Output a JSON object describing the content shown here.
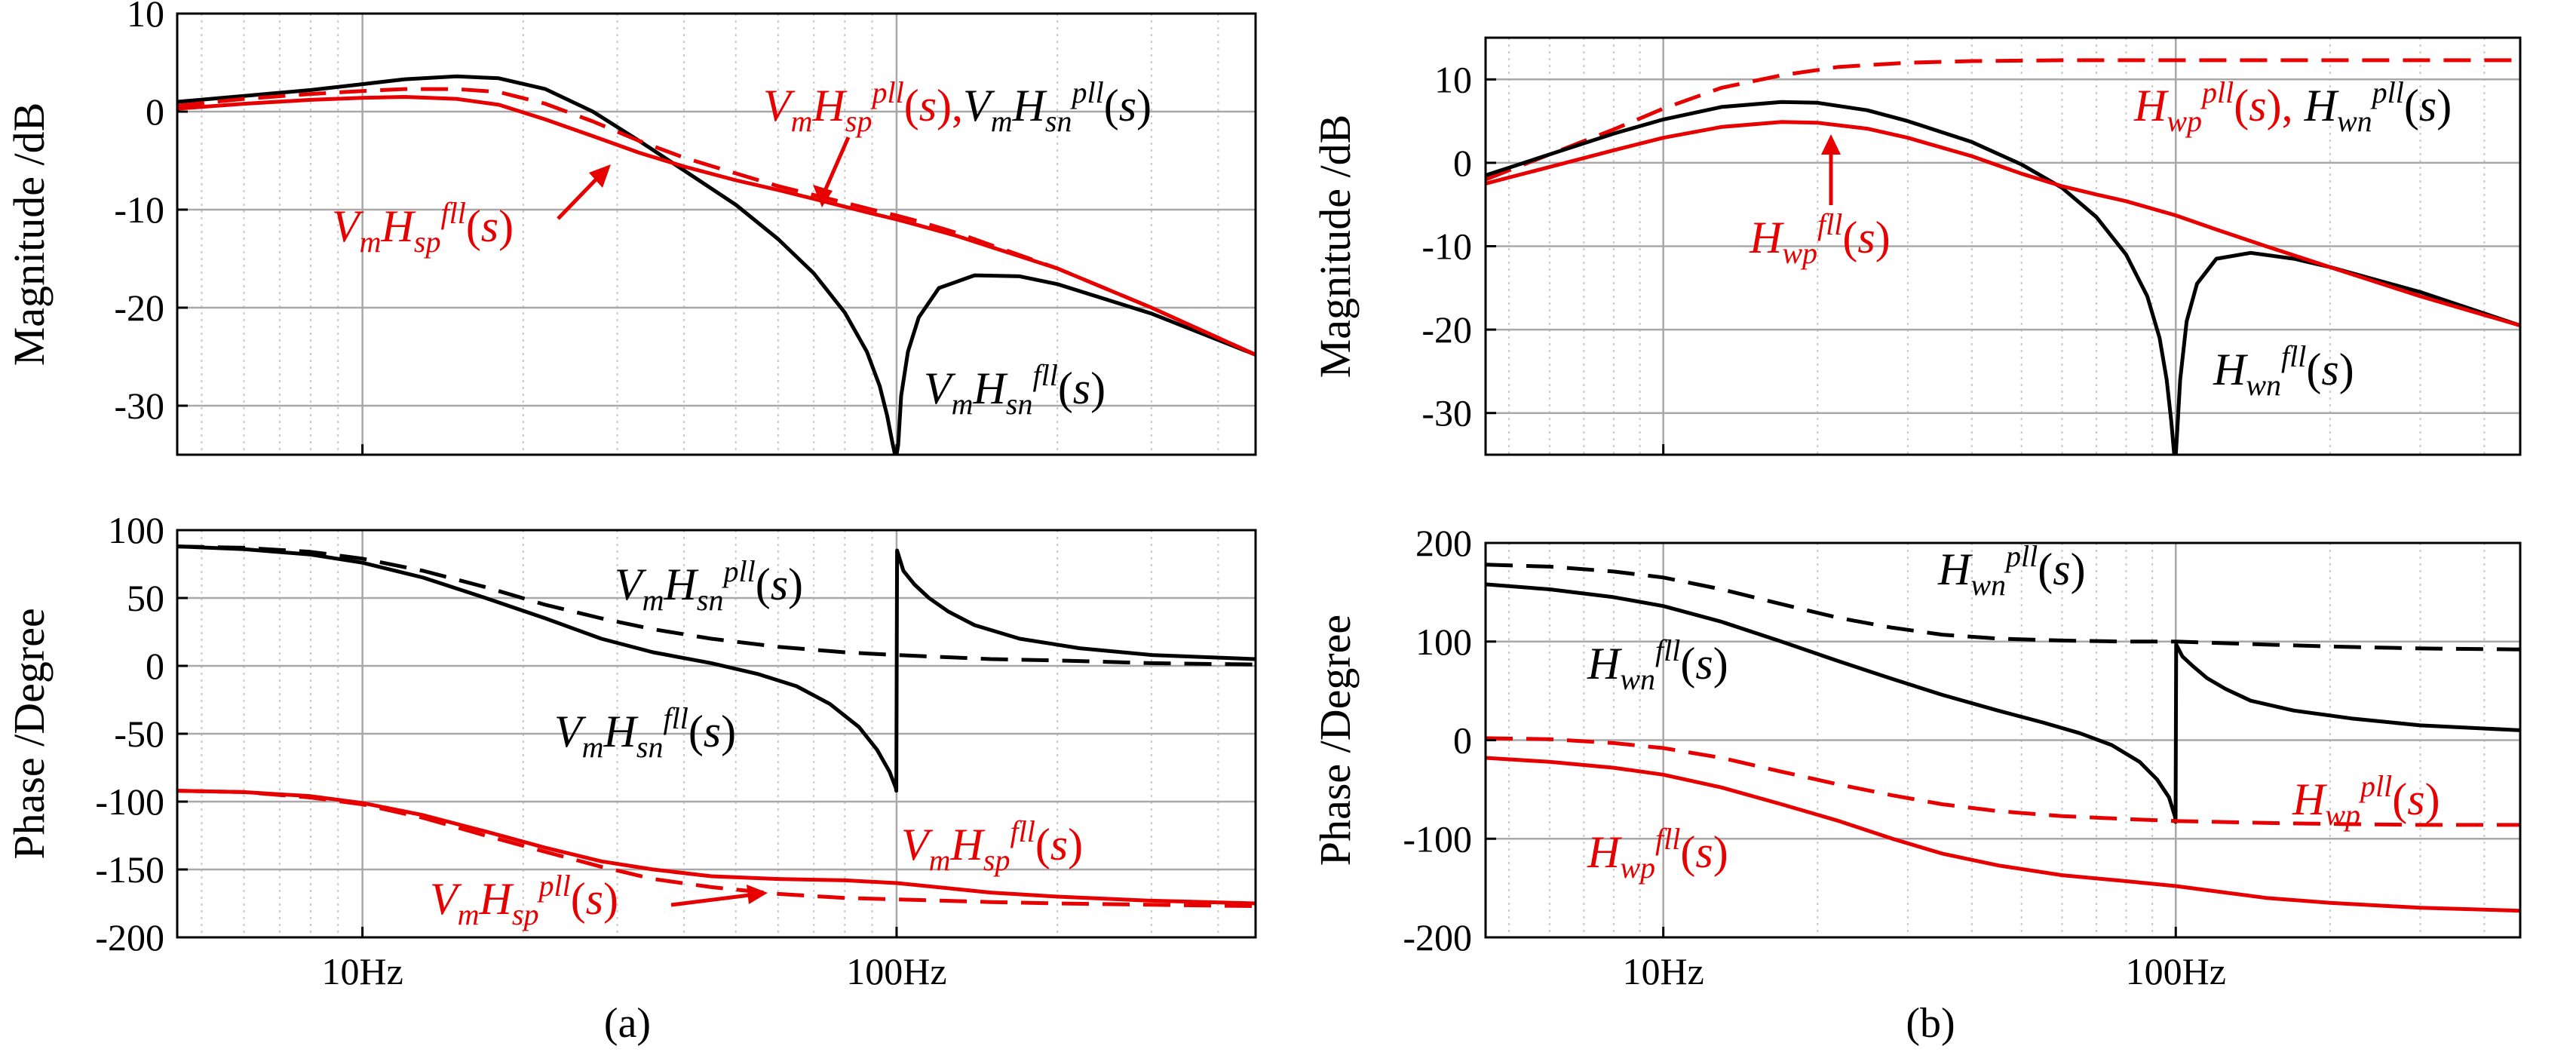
{
  "figure": {
    "panel_labels": [
      "(a)",
      "(b)"
    ],
    "x_unit_suffix": "Hz",
    "colors": {
      "black": "#000000",
      "red": "#e60000",
      "major_grid": "#a8a8a8",
      "minor_grid": "#c8c8c8"
    }
  },
  "chart_data": [
    {
      "id": "a-mag",
      "type": "line",
      "xscale": "log",
      "xlim": [
        4.5,
        470
      ],
      "ylim": [
        -35,
        10
      ],
      "xticks": [
        10,
        100
      ],
      "xtick_labels": [
        "",
        ""
      ],
      "yticks": [
        10,
        0,
        -10,
        -20,
        -30
      ],
      "ytick_labels": [
        "10",
        "0",
        "-10",
        "-20",
        "-30"
      ],
      "ylabel": "Magnitude /dB",
      "series": [
        {
          "name": "VmHsn_fll",
          "color": "black",
          "dash": false,
          "x": [
            4.5,
            6,
            8,
            10,
            12,
            15,
            18,
            22,
            27,
            33,
            40,
            50,
            60,
            70,
            80,
            88,
            93,
            96,
            98,
            99.3,
            100,
            100.7,
            102,
            105,
            110,
            120,
            140,
            170,
            200,
            300,
            470
          ],
          "y": [
            1,
            1.6,
            2.2,
            2.8,
            3.3,
            3.6,
            3.4,
            2.3,
            0,
            -3,
            -6,
            -9.5,
            -13,
            -16.5,
            -20.5,
            -24.5,
            -28,
            -31,
            -33.5,
            -35,
            -35,
            -34,
            -29,
            -24.5,
            -21,
            -18,
            -16.7,
            -16.8,
            -17.6,
            -20.6,
            -24.8
          ]
        },
        {
          "name": "VmHsp_pll",
          "color": "red",
          "dash": true,
          "x": [
            4.5,
            6,
            8,
            10,
            12,
            15,
            18,
            22,
            27,
            33,
            40,
            50,
            60,
            70,
            80,
            90,
            100,
            110,
            130,
            150,
            200,
            300,
            470
          ],
          "y": [
            0.6,
            1.3,
            1.8,
            2.1,
            2.3,
            2.3,
            2,
            0.8,
            -1,
            -3,
            -4.7,
            -6.3,
            -7.6,
            -8.5,
            -9.3,
            -10,
            -10.6,
            -11.2,
            -12.4,
            -13.6,
            -16,
            -20,
            -24.8
          ]
        },
        {
          "name": "VmHsp_fll",
          "color": "red",
          "dash": false,
          "x": [
            4.5,
            6,
            8,
            10,
            12,
            15,
            18,
            22,
            27,
            33,
            40,
            50,
            60,
            70,
            80,
            90,
            100,
            110,
            130,
            150,
            200,
            300,
            470
          ],
          "y": [
            0.3,
            0.8,
            1.2,
            1.4,
            1.5,
            1.3,
            0.7,
            -0.8,
            -2.5,
            -4.2,
            -5.6,
            -7,
            -8,
            -8.9,
            -9.7,
            -10.4,
            -11,
            -11.6,
            -12.7,
            -13.8,
            -16,
            -20,
            -24.8
          ]
        }
      ],
      "annotations": [
        {
          "text": "V_mH_sp^pll(s),V_mH_sn^pll(s)"
        },
        {
          "text": "V_mH_sp^fll(s)"
        },
        {
          "text": "V_mH_sn^fll(s)"
        }
      ]
    },
    {
      "id": "a-phase",
      "type": "line",
      "xscale": "log",
      "xlim": [
        4.5,
        470
      ],
      "ylim": [
        -200,
        100
      ],
      "xticks": [
        10,
        100
      ],
      "xtick_labels": [
        "10Hz",
        "100Hz"
      ],
      "yticks": [
        100,
        50,
        0,
        -50,
        -100,
        -150,
        -200
      ],
      "ytick_labels": [
        "100",
        "50",
        "0",
        "-50",
        "-100",
        "-150",
        "-200"
      ],
      "ylabel": "Phase /Degree",
      "series": [
        {
          "name": "VmHsn_pll",
          "color": "black",
          "dash": true,
          "x": [
            4.5,
            6,
            8,
            10,
            13,
            17,
            22,
            28,
            35,
            45,
            60,
            80,
            100,
            150,
            200,
            300,
            470
          ],
          "y": [
            88,
            87,
            84,
            79,
            70,
            58,
            45,
            35,
            27,
            20,
            14,
            10,
            8,
            5,
            4,
            2,
            1
          ]
        },
        {
          "name": "VmHsn_fll",
          "color": "black",
          "dash": false,
          "x": [
            4.5,
            6,
            8,
            10,
            13,
            17,
            22,
            28,
            35,
            45,
            55,
            65,
            75,
            85,
            92,
            97,
            99.7,
            99.9,
            100.2,
            103,
            108,
            115,
            125,
            140,
            170,
            220,
            300,
            470
          ],
          "y": [
            88,
            86,
            82,
            76,
            65,
            50,
            35,
            20,
            10,
            2,
            -6,
            -15,
            -28,
            -45,
            -62,
            -78,
            -90,
            -92,
            85,
            70,
            60,
            50,
            40,
            30,
            20,
            13,
            8,
            5
          ]
        },
        {
          "name": "VmHsp_fll",
          "color": "red",
          "dash": false,
          "x": [
            4.5,
            6,
            8,
            10,
            13,
            17,
            22,
            28,
            35,
            45,
            60,
            80,
            100,
            150,
            200,
            300,
            470
          ],
          "y": [
            -92,
            -93,
            -96,
            -101,
            -110,
            -122,
            -134,
            -144,
            -150,
            -155,
            -157,
            -158,
            -160,
            -167,
            -170,
            -173,
            -175
          ]
        },
        {
          "name": "VmHsp_pll",
          "color": "red",
          "dash": true,
          "x": [
            4.5,
            6,
            8,
            10,
            13,
            17,
            22,
            28,
            35,
            45,
            60,
            80,
            100,
            150,
            200,
            300,
            470
          ],
          "y": [
            -92,
            -93,
            -97,
            -102,
            -112,
            -125,
            -137,
            -148,
            -157,
            -163,
            -168,
            -171,
            -172,
            -174,
            -175,
            -176,
            -177
          ]
        }
      ],
      "annotations": [
        {
          "text": "V_mH_sn^pll(s)"
        },
        {
          "text": "V_mH_sn^fll(s)"
        },
        {
          "text": "V_mH_sp^fll(s)"
        },
        {
          "text": "V_mH_sp^pll(s)"
        }
      ]
    },
    {
      "id": "b-mag",
      "type": "line",
      "xscale": "log",
      "xlim": [
        4.5,
        470
      ],
      "ylim": [
        -35,
        15
      ],
      "xticks": [
        10,
        100
      ],
      "xtick_labels": [
        "",
        ""
      ],
      "yticks": [
        10,
        0,
        -10,
        -20,
        -30
      ],
      "ytick_labels": [
        "10",
        "0",
        "-10",
        "-20",
        "-30"
      ],
      "ylabel": "Magnitude /dB",
      "series": [
        {
          "name": "Hwp_pll",
          "color": "red",
          "dash": true,
          "x": [
            4.5,
            6,
            8,
            10,
            13,
            17,
            22,
            30,
            40,
            60,
            100,
            200,
            470
          ],
          "y": [
            -2,
            1,
            4,
            6.5,
            9,
            10.5,
            11.5,
            12,
            12.2,
            12.3,
            12.3,
            12.3,
            12.3
          ]
        },
        {
          "name": "Hwn_fll",
          "color": "black",
          "dash": false,
          "x": [
            4.5,
            6,
            8,
            10,
            13,
            17,
            20,
            25,
            30,
            40,
            50,
            60,
            70,
            80,
            88,
            93,
            96,
            98,
            99.3,
            100,
            100.7,
            102,
            105,
            110,
            120,
            140,
            170,
            200,
            300,
            470
          ],
          "y": [
            -1.5,
            1,
            3.5,
            5.2,
            6.7,
            7.3,
            7.2,
            6.3,
            5,
            2.5,
            -0.2,
            -3,
            -6.5,
            -11,
            -16,
            -21,
            -26,
            -31,
            -35,
            -35,
            -32,
            -26,
            -19,
            -14.5,
            -11.5,
            -10.8,
            -11.5,
            -12.5,
            -15.5,
            -19.5
          ]
        },
        {
          "name": "Hwp_fll",
          "color": "red",
          "dash": false,
          "x": [
            4.5,
            6,
            8,
            10,
            13,
            17,
            20,
            25,
            30,
            40,
            50,
            60,
            70,
            80,
            100,
            120,
            150,
            200,
            300,
            470
          ],
          "y": [
            -2.5,
            -0.5,
            1.5,
            3,
            4.3,
            4.9,
            4.8,
            4.1,
            3,
            0.8,
            -1.3,
            -2.8,
            -3.8,
            -4.6,
            -6.3,
            -8,
            -10,
            -12.5,
            -16,
            -19.5
          ]
        }
      ],
      "annotations": [
        {
          "text": "H_wp^pll(s), H_wn^pll(s)"
        },
        {
          "text": "H_wp^fll(s)"
        },
        {
          "text": "H_wn^fll(s)"
        }
      ]
    },
    {
      "id": "b-phase",
      "type": "line",
      "xscale": "log",
      "xlim": [
        4.5,
        470
      ],
      "ylim": [
        -200,
        200
      ],
      "xticks": [
        10,
        100
      ],
      "xtick_labels": [
        "10Hz",
        "100Hz"
      ],
      "yticks": [
        200,
        100,
        0,
        -100,
        -200
      ],
      "ytick_labels": [
        "200",
        "100",
        "0",
        "-100",
        "-200"
      ],
      "ylabel": "Phase /Degree",
      "series": [
        {
          "name": "Hwn_pll",
          "color": "black",
          "dash": true,
          "x": [
            4.5,
            6,
            8,
            10,
            13,
            17,
            22,
            28,
            35,
            45,
            60,
            80,
            100,
            150,
            200,
            300,
            470
          ],
          "y": [
            178,
            176,
            171,
            165,
            153,
            138,
            124,
            114,
            107,
            103,
            101,
            100,
            100,
            97,
            95,
            93,
            92
          ]
        },
        {
          "name": "Hwn_fll",
          "color": "black",
          "dash": false,
          "x": [
            4.5,
            6,
            8,
            10,
            13,
            17,
            22,
            28,
            35,
            45,
            55,
            65,
            75,
            85,
            92,
            97,
            99.7,
            99.9,
            100.2,
            103,
            108,
            115,
            125,
            140,
            170,
            220,
            300,
            470
          ],
          "y": [
            158,
            153,
            145,
            136,
            120,
            100,
            80,
            62,
            46,
            30,
            18,
            7,
            -5,
            -22,
            -40,
            -58,
            -78,
            -83,
            97,
            85,
            75,
            63,
            52,
            40,
            30,
            22,
            15,
            10
          ]
        },
        {
          "name": "Hwp_pll",
          "color": "red",
          "dash": true,
          "x": [
            4.5,
            6,
            8,
            10,
            13,
            17,
            22,
            28,
            35,
            45,
            60,
            80,
            100,
            150,
            200,
            300,
            470
          ],
          "y": [
            2,
            1,
            -3,
            -8,
            -18,
            -32,
            -45,
            -56,
            -65,
            -72,
            -77,
            -80,
            -82,
            -84,
            -85,
            -86,
            -86
          ]
        },
        {
          "name": "Hwp_fll",
          "color": "red",
          "dash": false,
          "x": [
            4.5,
            6,
            8,
            10,
            13,
            17,
            22,
            28,
            35,
            45,
            60,
            80,
            100,
            150,
            200,
            300,
            470
          ],
          "y": [
            -18,
            -22,
            -28,
            -35,
            -48,
            -65,
            -82,
            -100,
            -115,
            -127,
            -137,
            -143,
            -148,
            -160,
            -165,
            -170,
            -173
          ]
        }
      ],
      "annotations": [
        {
          "text": "H_wn^pll(s)"
        },
        {
          "text": "H_wn^fll(s)"
        },
        {
          "text": "H_wp^pll(s)"
        },
        {
          "text": "H_wp^fll(s)"
        }
      ]
    }
  ]
}
